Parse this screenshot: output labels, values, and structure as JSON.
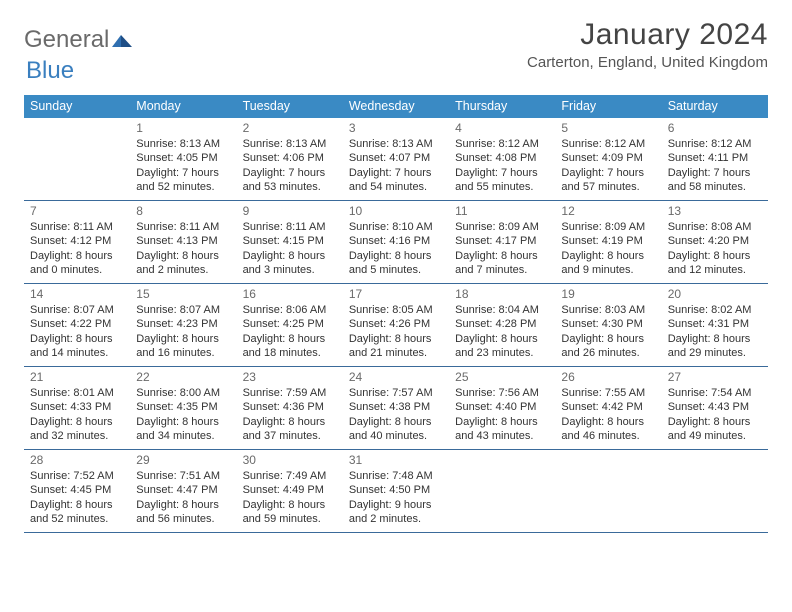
{
  "logo": {
    "word1": "General",
    "word2": "Blue"
  },
  "title": "January 2024",
  "location": "Carterton, England, United Kingdom",
  "colors": {
    "header_bg": "#3a8ac4",
    "header_text": "#ffffff",
    "row_border": "#3a6a9a",
    "body_text": "#333333",
    "daynum_text": "#6a6a6a",
    "logo_gray": "#6a6a6a",
    "logo_blue": "#3a7fbf"
  },
  "day_headers": [
    "Sunday",
    "Monday",
    "Tuesday",
    "Wednesday",
    "Thursday",
    "Friday",
    "Saturday"
  ],
  "weeks": [
    [
      {
        "n": "",
        "sr": "",
        "ss": "",
        "dl": ""
      },
      {
        "n": "1",
        "sr": "Sunrise: 8:13 AM",
        "ss": "Sunset: 4:05 PM",
        "dl": "Daylight: 7 hours and 52 minutes."
      },
      {
        "n": "2",
        "sr": "Sunrise: 8:13 AM",
        "ss": "Sunset: 4:06 PM",
        "dl": "Daylight: 7 hours and 53 minutes."
      },
      {
        "n": "3",
        "sr": "Sunrise: 8:13 AM",
        "ss": "Sunset: 4:07 PM",
        "dl": "Daylight: 7 hours and 54 minutes."
      },
      {
        "n": "4",
        "sr": "Sunrise: 8:12 AM",
        "ss": "Sunset: 4:08 PM",
        "dl": "Daylight: 7 hours and 55 minutes."
      },
      {
        "n": "5",
        "sr": "Sunrise: 8:12 AM",
        "ss": "Sunset: 4:09 PM",
        "dl": "Daylight: 7 hours and 57 minutes."
      },
      {
        "n": "6",
        "sr": "Sunrise: 8:12 AM",
        "ss": "Sunset: 4:11 PM",
        "dl": "Daylight: 7 hours and 58 minutes."
      }
    ],
    [
      {
        "n": "7",
        "sr": "Sunrise: 8:11 AM",
        "ss": "Sunset: 4:12 PM",
        "dl": "Daylight: 8 hours and 0 minutes."
      },
      {
        "n": "8",
        "sr": "Sunrise: 8:11 AM",
        "ss": "Sunset: 4:13 PM",
        "dl": "Daylight: 8 hours and 2 minutes."
      },
      {
        "n": "9",
        "sr": "Sunrise: 8:11 AM",
        "ss": "Sunset: 4:15 PM",
        "dl": "Daylight: 8 hours and 3 minutes."
      },
      {
        "n": "10",
        "sr": "Sunrise: 8:10 AM",
        "ss": "Sunset: 4:16 PM",
        "dl": "Daylight: 8 hours and 5 minutes."
      },
      {
        "n": "11",
        "sr": "Sunrise: 8:09 AM",
        "ss": "Sunset: 4:17 PM",
        "dl": "Daylight: 8 hours and 7 minutes."
      },
      {
        "n": "12",
        "sr": "Sunrise: 8:09 AM",
        "ss": "Sunset: 4:19 PM",
        "dl": "Daylight: 8 hours and 9 minutes."
      },
      {
        "n": "13",
        "sr": "Sunrise: 8:08 AM",
        "ss": "Sunset: 4:20 PM",
        "dl": "Daylight: 8 hours and 12 minutes."
      }
    ],
    [
      {
        "n": "14",
        "sr": "Sunrise: 8:07 AM",
        "ss": "Sunset: 4:22 PM",
        "dl": "Daylight: 8 hours and 14 minutes."
      },
      {
        "n": "15",
        "sr": "Sunrise: 8:07 AM",
        "ss": "Sunset: 4:23 PM",
        "dl": "Daylight: 8 hours and 16 minutes."
      },
      {
        "n": "16",
        "sr": "Sunrise: 8:06 AM",
        "ss": "Sunset: 4:25 PM",
        "dl": "Daylight: 8 hours and 18 minutes."
      },
      {
        "n": "17",
        "sr": "Sunrise: 8:05 AM",
        "ss": "Sunset: 4:26 PM",
        "dl": "Daylight: 8 hours and 21 minutes."
      },
      {
        "n": "18",
        "sr": "Sunrise: 8:04 AM",
        "ss": "Sunset: 4:28 PM",
        "dl": "Daylight: 8 hours and 23 minutes."
      },
      {
        "n": "19",
        "sr": "Sunrise: 8:03 AM",
        "ss": "Sunset: 4:30 PM",
        "dl": "Daylight: 8 hours and 26 minutes."
      },
      {
        "n": "20",
        "sr": "Sunrise: 8:02 AM",
        "ss": "Sunset: 4:31 PM",
        "dl": "Daylight: 8 hours and 29 minutes."
      }
    ],
    [
      {
        "n": "21",
        "sr": "Sunrise: 8:01 AM",
        "ss": "Sunset: 4:33 PM",
        "dl": "Daylight: 8 hours and 32 minutes."
      },
      {
        "n": "22",
        "sr": "Sunrise: 8:00 AM",
        "ss": "Sunset: 4:35 PM",
        "dl": "Daylight: 8 hours and 34 minutes."
      },
      {
        "n": "23",
        "sr": "Sunrise: 7:59 AM",
        "ss": "Sunset: 4:36 PM",
        "dl": "Daylight: 8 hours and 37 minutes."
      },
      {
        "n": "24",
        "sr": "Sunrise: 7:57 AM",
        "ss": "Sunset: 4:38 PM",
        "dl": "Daylight: 8 hours and 40 minutes."
      },
      {
        "n": "25",
        "sr": "Sunrise: 7:56 AM",
        "ss": "Sunset: 4:40 PM",
        "dl": "Daylight: 8 hours and 43 minutes."
      },
      {
        "n": "26",
        "sr": "Sunrise: 7:55 AM",
        "ss": "Sunset: 4:42 PM",
        "dl": "Daylight: 8 hours and 46 minutes."
      },
      {
        "n": "27",
        "sr": "Sunrise: 7:54 AM",
        "ss": "Sunset: 4:43 PM",
        "dl": "Daylight: 8 hours and 49 minutes."
      }
    ],
    [
      {
        "n": "28",
        "sr": "Sunrise: 7:52 AM",
        "ss": "Sunset: 4:45 PM",
        "dl": "Daylight: 8 hours and 52 minutes."
      },
      {
        "n": "29",
        "sr": "Sunrise: 7:51 AM",
        "ss": "Sunset: 4:47 PM",
        "dl": "Daylight: 8 hours and 56 minutes."
      },
      {
        "n": "30",
        "sr": "Sunrise: 7:49 AM",
        "ss": "Sunset: 4:49 PM",
        "dl": "Daylight: 8 hours and 59 minutes."
      },
      {
        "n": "31",
        "sr": "Sunrise: 7:48 AM",
        "ss": "Sunset: 4:50 PM",
        "dl": "Daylight: 9 hours and 2 minutes."
      },
      {
        "n": "",
        "sr": "",
        "ss": "",
        "dl": ""
      },
      {
        "n": "",
        "sr": "",
        "ss": "",
        "dl": ""
      },
      {
        "n": "",
        "sr": "",
        "ss": "",
        "dl": ""
      }
    ]
  ]
}
